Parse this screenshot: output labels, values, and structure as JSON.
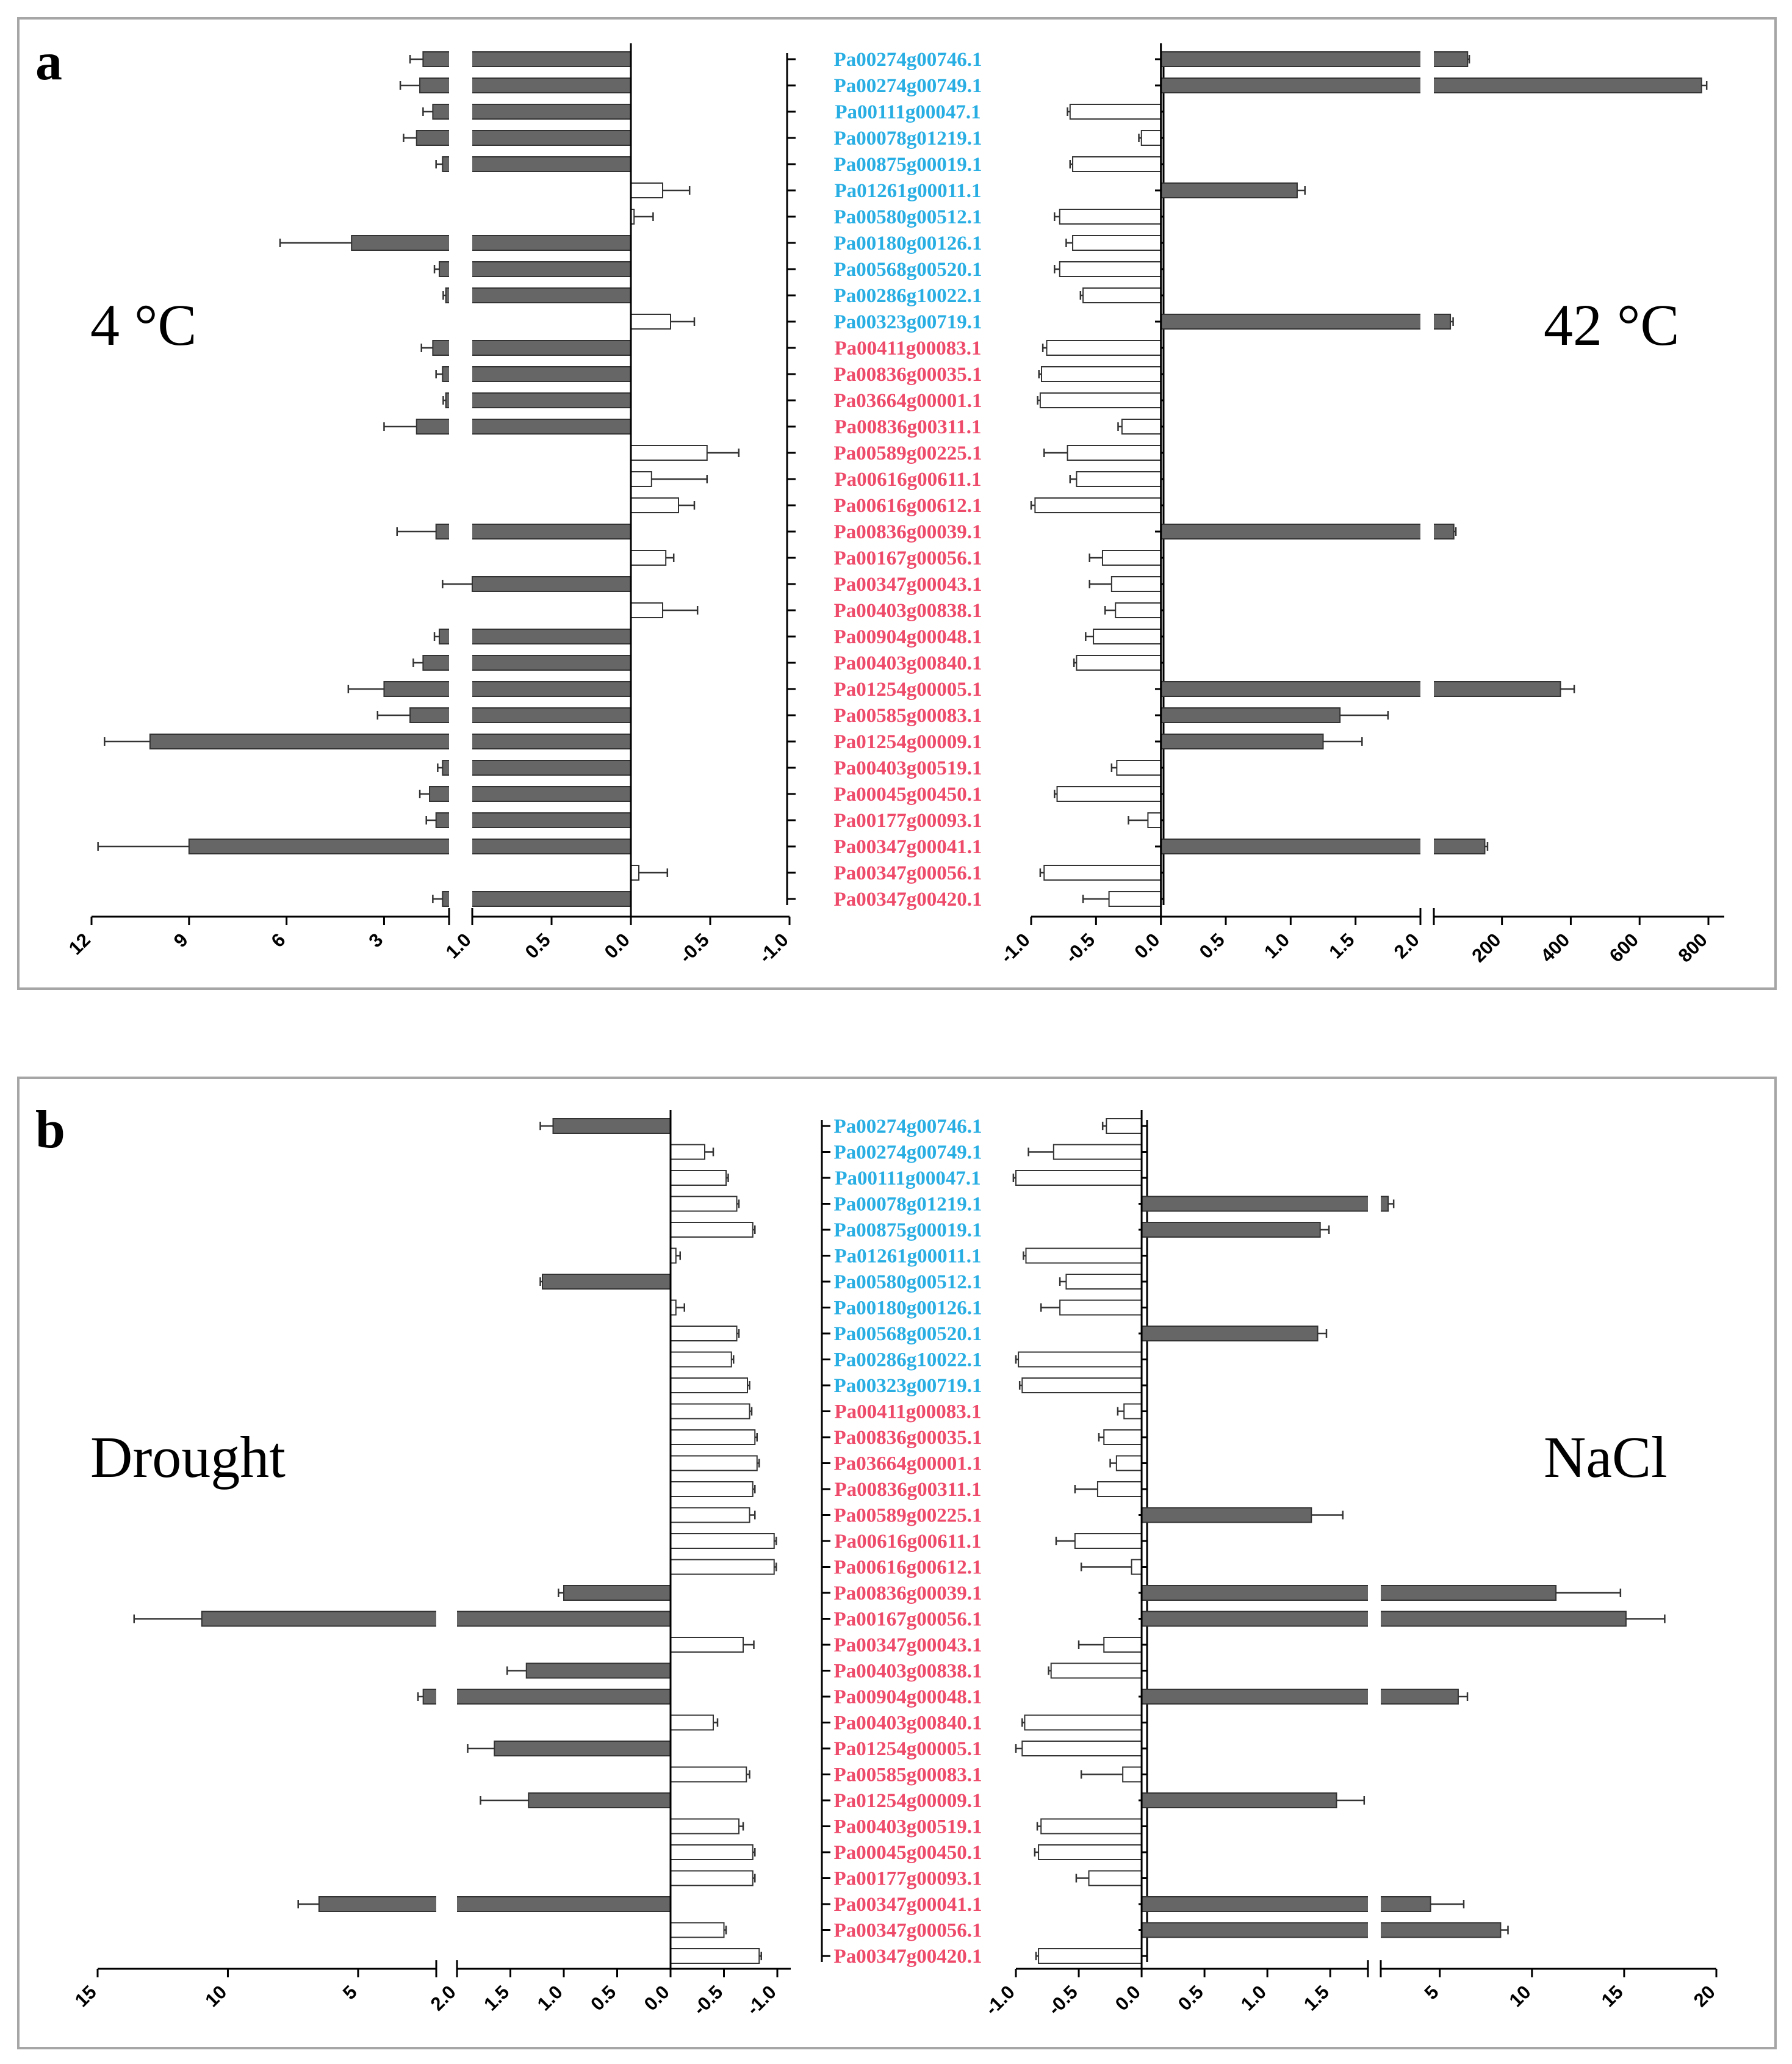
{
  "colors": {
    "up": "#666666",
    "down": "#ffffff",
    "blue_gene": "#29aee3",
    "red_gene": "#ee4a6a"
  },
  "panels": [
    {
      "label": "a",
      "left_condition": "4 °C",
      "right_condition": "42 °C"
    },
    {
      "label": "b",
      "left_condition": "Drought",
      "right_condition": "NaCl"
    }
  ],
  "genes": [
    {
      "id": "Pa00274g00746.1",
      "group": "blue"
    },
    {
      "id": "Pa00274g00749.1",
      "group": "blue"
    },
    {
      "id": "Pa00111g00047.1",
      "group": "blue"
    },
    {
      "id": "Pa00078g01219.1",
      "group": "blue"
    },
    {
      "id": "Pa00875g00019.1",
      "group": "blue"
    },
    {
      "id": "Pa01261g00011.1",
      "group": "blue"
    },
    {
      "id": "Pa00580g00512.1",
      "group": "blue"
    },
    {
      "id": "Pa00180g00126.1",
      "group": "blue"
    },
    {
      "id": "Pa00568g00520.1",
      "group": "blue"
    },
    {
      "id": "Pa00286g10022.1",
      "group": "blue"
    },
    {
      "id": "Pa00323g00719.1",
      "group": "blue"
    },
    {
      "id": "Pa00411g00083.1",
      "group": "red"
    },
    {
      "id": "Pa00836g00035.1",
      "group": "red"
    },
    {
      "id": "Pa03664g00001.1",
      "group": "red"
    },
    {
      "id": "Pa00836g00311.1",
      "group": "red"
    },
    {
      "id": "Pa00589g00225.1",
      "group": "red"
    },
    {
      "id": "Pa00616g00611.1",
      "group": "red"
    },
    {
      "id": "Pa00616g00612.1",
      "group": "red"
    },
    {
      "id": "Pa00836g00039.1",
      "group": "red"
    },
    {
      "id": "Pa00167g00056.1",
      "group": "red"
    },
    {
      "id": "Pa00347g00043.1",
      "group": "red"
    },
    {
      "id": "Pa00403g00838.1",
      "group": "red"
    },
    {
      "id": "Pa00904g00048.1",
      "group": "red"
    },
    {
      "id": "Pa00403g00840.1",
      "group": "red"
    },
    {
      "id": "Pa01254g00005.1",
      "group": "red"
    },
    {
      "id": "Pa00585g00083.1",
      "group": "red"
    },
    {
      "id": "Pa01254g00009.1",
      "group": "red"
    },
    {
      "id": "Pa00403g00519.1",
      "group": "red"
    },
    {
      "id": "Pa00045g00450.1",
      "group": "red"
    },
    {
      "id": "Pa00177g00093.1",
      "group": "red"
    },
    {
      "id": "Pa00347g00041.1",
      "group": "red"
    },
    {
      "id": "Pa00347g00056.1",
      "group": "red"
    },
    {
      "id": "Pa00347g00420.1",
      "group": "red"
    }
  ],
  "chart_data": [
    {
      "type": "bar",
      "orientation": "horizontal",
      "series": [
        {
          "name": "4 °C",
          "values": [
            1.8,
            1.9,
            1.5,
            2.0,
            1.2,
            -0.2,
            -0.02,
            4.0,
            1.3,
            1.1,
            -0.25,
            1.5,
            1.2,
            1.1,
            2.0,
            -0.48,
            -0.13,
            -0.3,
            1.4,
            -0.22,
            1.0,
            -0.2,
            1.3,
            1.8,
            3.0,
            2.2,
            10.2,
            1.2,
            1.6,
            1.4,
            9.0,
            -0.05,
            1.2
          ],
          "errors": [
            0.4,
            0.6,
            0.3,
            0.4,
            0.2,
            0.17,
            0.12,
            2.2,
            0.15,
            0.08,
            0.15,
            0.35,
            0.2,
            0.08,
            1.0,
            0.2,
            0.35,
            0.1,
            1.2,
            0.05,
            0.2,
            0.22,
            0.15,
            0.3,
            1.1,
            1.0,
            1.4,
            0.15,
            0.3,
            0.3,
            2.8,
            0.18,
            0.3
          ]
        }
      ],
      "xaxis": {
        "direction": "reversed",
        "break_at": 1.0,
        "segment1": [
          -1.0,
          1.0
        ],
        "segment2": [
          1.0,
          12
        ],
        "ticks_segment1": [
          "-1.0",
          "-0.5",
          "0.0",
          "0.5",
          "1.0"
        ],
        "ticks_segment2": [
          "3",
          "6",
          "9",
          "12"
        ]
      }
    },
    {
      "type": "bar",
      "orientation": "horizontal",
      "series": [
        {
          "name": "42 °C",
          "values": [
            100,
            780,
            -0.7,
            -0.15,
            -0.68,
            1.05,
            -0.78,
            -0.68,
            -0.78,
            -0.6,
            50,
            -0.88,
            -0.92,
            -0.93,
            -0.3,
            -0.72,
            -0.65,
            -0.97,
            60,
            -0.45,
            -0.38,
            -0.35,
            -0.52,
            -0.65,
            370,
            1.38,
            1.25,
            -0.34,
            -0.8,
            -0.1,
            150,
            -0.9,
            -0.4
          ],
          "errors": [
            5,
            15,
            0.02,
            0.02,
            0.02,
            0.06,
            0.04,
            0.05,
            0.04,
            0.02,
            8,
            0.03,
            0.02,
            0.02,
            0.03,
            0.18,
            0.05,
            0.03,
            6,
            0.1,
            0.17,
            0.08,
            0.06,
            0.02,
            40,
            0.37,
            0.3,
            0.04,
            0.02,
            0.15,
            8,
            0.03,
            0.2
          ]
        }
      ],
      "xaxis": {
        "break_at": 2.0,
        "segment1": [
          -1.0,
          2.0
        ],
        "segment2": [
          2.0,
          800
        ],
        "ticks_segment1": [
          "-1.0",
          "-0.5",
          "0.0",
          "0.5",
          "1.0",
          "1.5",
          "2.0"
        ],
        "ticks_segment2": [
          "200",
          "400",
          "600",
          "800"
        ]
      }
    },
    {
      "type": "bar",
      "orientation": "horizontal",
      "series": [
        {
          "name": "Drought",
          "values": [
            1.1,
            -0.32,
            -0.52,
            -0.62,
            -0.77,
            -0.05,
            1.2,
            -0.05,
            -0.62,
            -0.57,
            -0.72,
            -0.74,
            -0.79,
            -0.81,
            -0.77,
            -0.74,
            -0.97,
            -0.97,
            1.0,
            11.0,
            -0.68,
            1.35,
            2.5,
            -0.4,
            1.65,
            -0.71,
            1.33,
            -0.64,
            -0.77,
            -0.77,
            6.5,
            -0.5,
            -0.83
          ],
          "errors": [
            0.12,
            0.08,
            0.02,
            0.02,
            0.02,
            0.04,
            0.02,
            0.08,
            0.02,
            0.02,
            0.02,
            0.02,
            0.02,
            0.02,
            0.02,
            0.05,
            0.02,
            0.02,
            0.05,
            2.6,
            0.1,
            0.18,
            0.2,
            0.04,
            0.25,
            0.03,
            0.45,
            0.04,
            0.02,
            0.02,
            0.8,
            0.02,
            0.02
          ]
        }
      ],
      "xaxis": {
        "direction": "reversed",
        "break_at": 2.0,
        "segment1": [
          -1.0,
          2.0
        ],
        "segment2": [
          2.0,
          15
        ],
        "ticks_segment1": [
          "-1.0",
          "-0.5",
          "0.0",
          "0.5",
          "1.0",
          "1.5",
          "2.0"
        ],
        "ticks_segment2": [
          "5",
          "10",
          "15"
        ]
      }
    },
    {
      "type": "bar",
      "orientation": "horizontal",
      "series": [
        {
          "name": "NaCl",
          "values": [
            -0.28,
            -0.7,
            -1.0,
            2.2,
            1.42,
            -0.92,
            -0.6,
            -0.65,
            1.4,
            -0.98,
            -0.95,
            -0.14,
            -0.3,
            -0.2,
            -0.35,
            1.35,
            -0.53,
            -0.08,
            11.3,
            15.1,
            -0.3,
            -0.72,
            6.0,
            -0.93,
            -0.95,
            -0.15,
            1.55,
            -0.8,
            -0.82,
            -0.42,
            4.5,
            8.3,
            -0.82
          ],
          "errors": [
            0.03,
            0.2,
            0.02,
            0.3,
            0.07,
            0.02,
            0.05,
            0.15,
            0.07,
            0.02,
            0.02,
            0.05,
            0.04,
            0.05,
            0.18,
            0.25,
            0.15,
            0.4,
            3.5,
            2.1,
            0.2,
            0.02,
            0.5,
            0.02,
            0.05,
            0.33,
            0.22,
            0.03,
            0.03,
            0.1,
            1.8,
            0.4,
            0.02
          ]
        }
      ],
      "xaxis": {
        "break_at": 1.8,
        "segment1": [
          -1.0,
          1.8
        ],
        "segment2": [
          1.8,
          20
        ],
        "ticks_segment1": [
          "-1.0",
          "-0.5",
          "0.0",
          "0.5",
          "1.0",
          "1.5"
        ],
        "ticks_segment2": [
          "5",
          "10",
          "15",
          "20"
        ]
      }
    }
  ]
}
